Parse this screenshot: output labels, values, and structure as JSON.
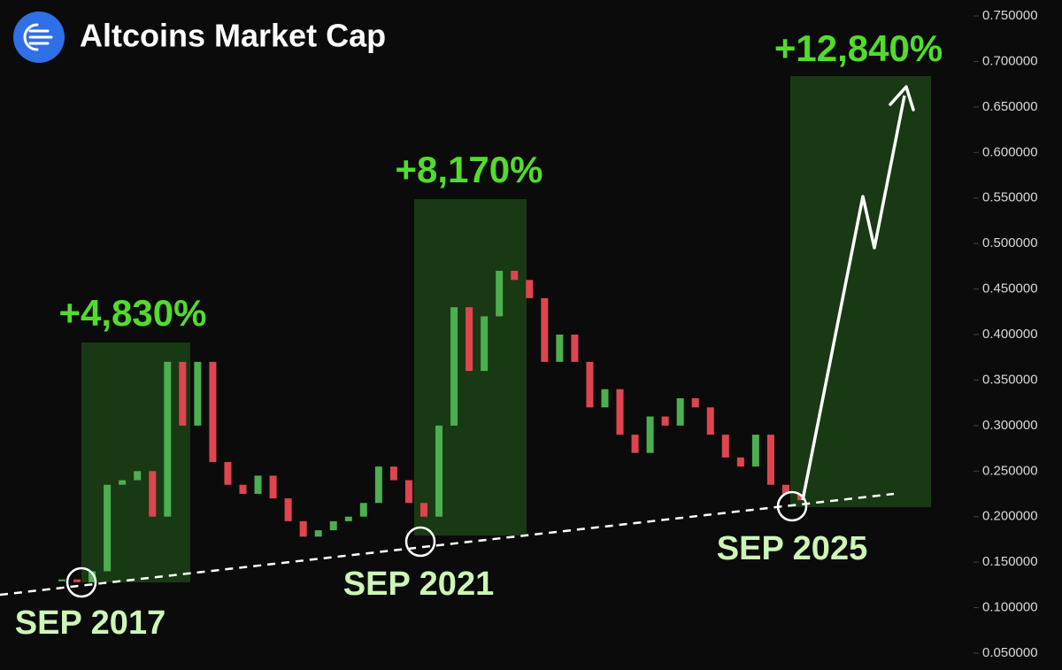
{
  "chart_data": {
    "type": "candlestick",
    "title": "Altcoins Market Cap",
    "values": [
      0.131,
      0.128,
      0.14,
      0.235,
      0.24,
      0.25,
      0.2,
      0.37,
      0.3,
      0.37,
      0.26,
      0.235,
      0.225,
      0.245,
      0.22,
      0.195,
      0.178,
      0.185,
      0.195,
      0.2,
      0.215,
      0.255,
      0.24,
      0.215,
      0.2,
      0.3,
      0.43,
      0.36,
      0.42,
      0.47,
      0.46,
      0.44,
      0.37,
      0.4,
      0.37,
      0.32,
      0.34,
      0.29,
      0.27,
      0.31,
      0.3,
      0.33,
      0.32,
      0.29,
      0.265,
      0.255,
      0.29,
      0.235,
      0.225,
      0.218
    ],
    "up_color": "#4caf50",
    "down_color": "#e0454f",
    "ylim": [
      0.05,
      0.75
    ],
    "yticks": [
      {
        "value": 0.75,
        "label": "0.750000"
      },
      {
        "value": 0.7,
        "label": "0.700000"
      },
      {
        "value": 0.65,
        "label": "0.650000"
      },
      {
        "value": 0.6,
        "label": "0.600000"
      },
      {
        "value": 0.55,
        "label": "0.550000"
      },
      {
        "value": 0.5,
        "label": "0.500000"
      },
      {
        "value": 0.45,
        "label": "0.450000"
      },
      {
        "value": 0.4,
        "label": "0.400000"
      },
      {
        "value": 0.35,
        "label": "0.350000"
      },
      {
        "value": 0.3,
        "label": "0.300000"
      },
      {
        "value": 0.25,
        "label": "0.250000"
      },
      {
        "value": 0.2,
        "label": "0.200000"
      },
      {
        "value": 0.15,
        "label": "0.150000"
      },
      {
        "value": 0.1,
        "label": "0.100000"
      },
      {
        "value": 0.05,
        "label": "0.050000"
      }
    ],
    "annotations": [
      "+4,830%",
      "+8,170%",
      "+12,840%",
      "SEP 2017",
      "SEP 2021",
      "SEP 2025"
    ],
    "gain_color": "#52dc2c",
    "date_color": "#cdf6b6"
  }
}
